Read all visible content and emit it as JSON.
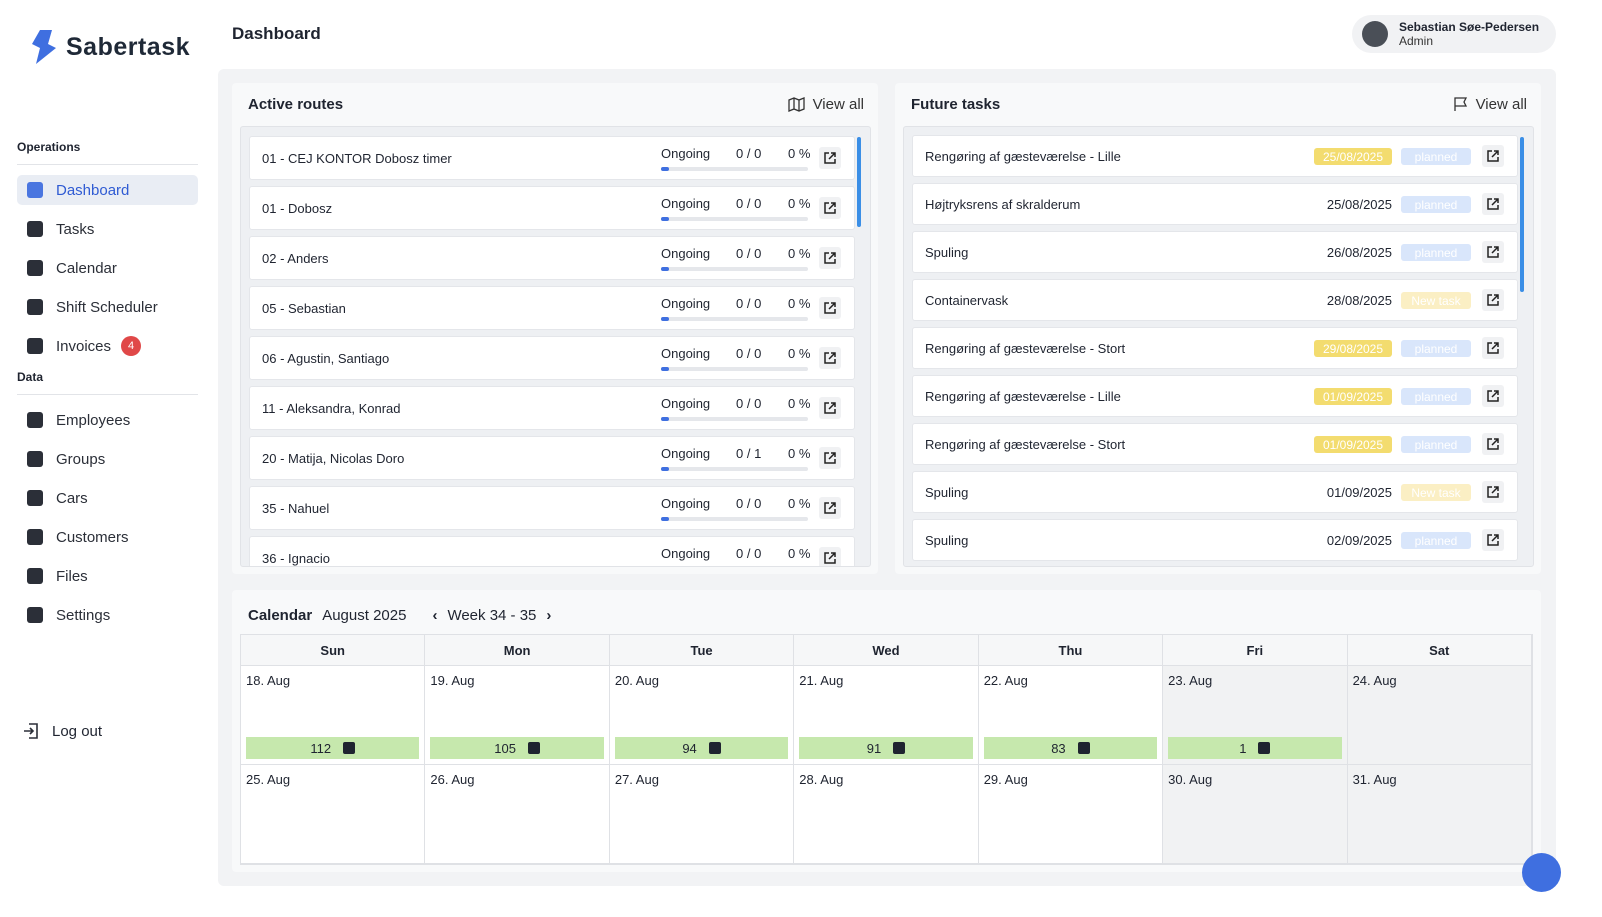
{
  "brand": "Sabertask",
  "header": {
    "title": "Dashboard",
    "user": {
      "name": "Sebastian Søe-Pedersen",
      "role": "Admin"
    }
  },
  "sidebar": {
    "sections": [
      {
        "title": "Operations",
        "items": [
          {
            "label": "Dashboard",
            "active": true
          },
          {
            "label": "Tasks"
          },
          {
            "label": "Calendar"
          },
          {
            "label": "Shift Scheduler"
          },
          {
            "label": "Invoices",
            "badge": 4
          }
        ]
      },
      {
        "title": "Data",
        "items": [
          {
            "label": "Employees"
          },
          {
            "label": "Groups"
          },
          {
            "label": "Cars"
          },
          {
            "label": "Customers"
          },
          {
            "label": "Files"
          },
          {
            "label": "Settings"
          }
        ]
      }
    ],
    "logout": "Log out"
  },
  "active_routes": {
    "title": "Active routes",
    "action": "View all",
    "rows": [
      {
        "name": "01 - CEJ KONTOR Dobosz timer",
        "status": "Ongoing",
        "progress": "0 / 0",
        "percent": "0 %"
      },
      {
        "name": "01 - Dobosz",
        "status": "Ongoing",
        "progress": "0 / 0",
        "percent": "0 %"
      },
      {
        "name": "02 - Anders",
        "status": "Ongoing",
        "progress": "0 / 0",
        "percent": "0 %"
      },
      {
        "name": "05 - Sebastian",
        "status": "Ongoing",
        "progress": "0 / 0",
        "percent": "0 %"
      },
      {
        "name": "06 - Agustin, Santiago",
        "status": "Ongoing",
        "progress": "0 / 0",
        "percent": "0 %"
      },
      {
        "name": "11 - Aleksandra, Konrad",
        "status": "Ongoing",
        "progress": "0 / 0",
        "percent": "0 %"
      },
      {
        "name": "20 - Matija, Nicolas Doro",
        "status": "Ongoing",
        "progress": "0 / 1",
        "percent": "0 %"
      },
      {
        "name": "35 - Nahuel",
        "status": "Ongoing",
        "progress": "0 / 0",
        "percent": "0 %"
      },
      {
        "name": "36 - Ignacio",
        "status": "Ongoing",
        "progress": "0 / 0",
        "percent": "0 %"
      }
    ]
  },
  "future_tasks": {
    "title": "Future tasks",
    "action": "View all",
    "rows": [
      {
        "name": "Rengøring af gæsteværelse - Lille",
        "date": "25/08/2025",
        "highlight": true,
        "status": "planned"
      },
      {
        "name": "Højtryksrens af skralderum",
        "date": "25/08/2025",
        "highlight": false,
        "status": "planned"
      },
      {
        "name": "Spuling",
        "date": "26/08/2025",
        "highlight": false,
        "status": "planned"
      },
      {
        "name": "Containervask",
        "date": "28/08/2025",
        "highlight": false,
        "status": "New task"
      },
      {
        "name": "Rengøring af gæsteværelse - Stort",
        "date": "29/08/2025",
        "highlight": true,
        "status": "planned"
      },
      {
        "name": "Rengøring af gæsteværelse - Lille",
        "date": "01/09/2025",
        "highlight": true,
        "status": "planned"
      },
      {
        "name": "Rengøring af gæsteværelse - Stort",
        "date": "01/09/2025",
        "highlight": true,
        "status": "planned"
      },
      {
        "name": "Spuling",
        "date": "01/09/2025",
        "highlight": false,
        "status": "New task"
      },
      {
        "name": "Spuling",
        "date": "02/09/2025",
        "highlight": false,
        "status": "planned"
      }
    ]
  },
  "calendar": {
    "title": "Calendar",
    "month": "August 2025",
    "week": "Week 34 - 35",
    "weekdays": [
      "Sun",
      "Mon",
      "Tue",
      "Wed",
      "Thu",
      "Fri",
      "Sat"
    ],
    "weeks": [
      [
        {
          "date": "18. Aug",
          "count": 112
        },
        {
          "date": "19. Aug",
          "count": 105
        },
        {
          "date": "20. Aug",
          "count": 94
        },
        {
          "date": "21. Aug",
          "count": 91
        },
        {
          "date": "22. Aug",
          "count": 83
        },
        {
          "date": "23. Aug",
          "count": 1,
          "shaded": true
        },
        {
          "date": "24. Aug",
          "shaded": true
        }
      ],
      [
        {
          "date": "25. Aug"
        },
        {
          "date": "26. Aug"
        },
        {
          "date": "27. Aug"
        },
        {
          "date": "28. Aug"
        },
        {
          "date": "29. Aug"
        },
        {
          "date": "30. Aug",
          "shaded": true
        },
        {
          "date": "31. Aug",
          "shaded": true
        }
      ]
    ]
  }
}
